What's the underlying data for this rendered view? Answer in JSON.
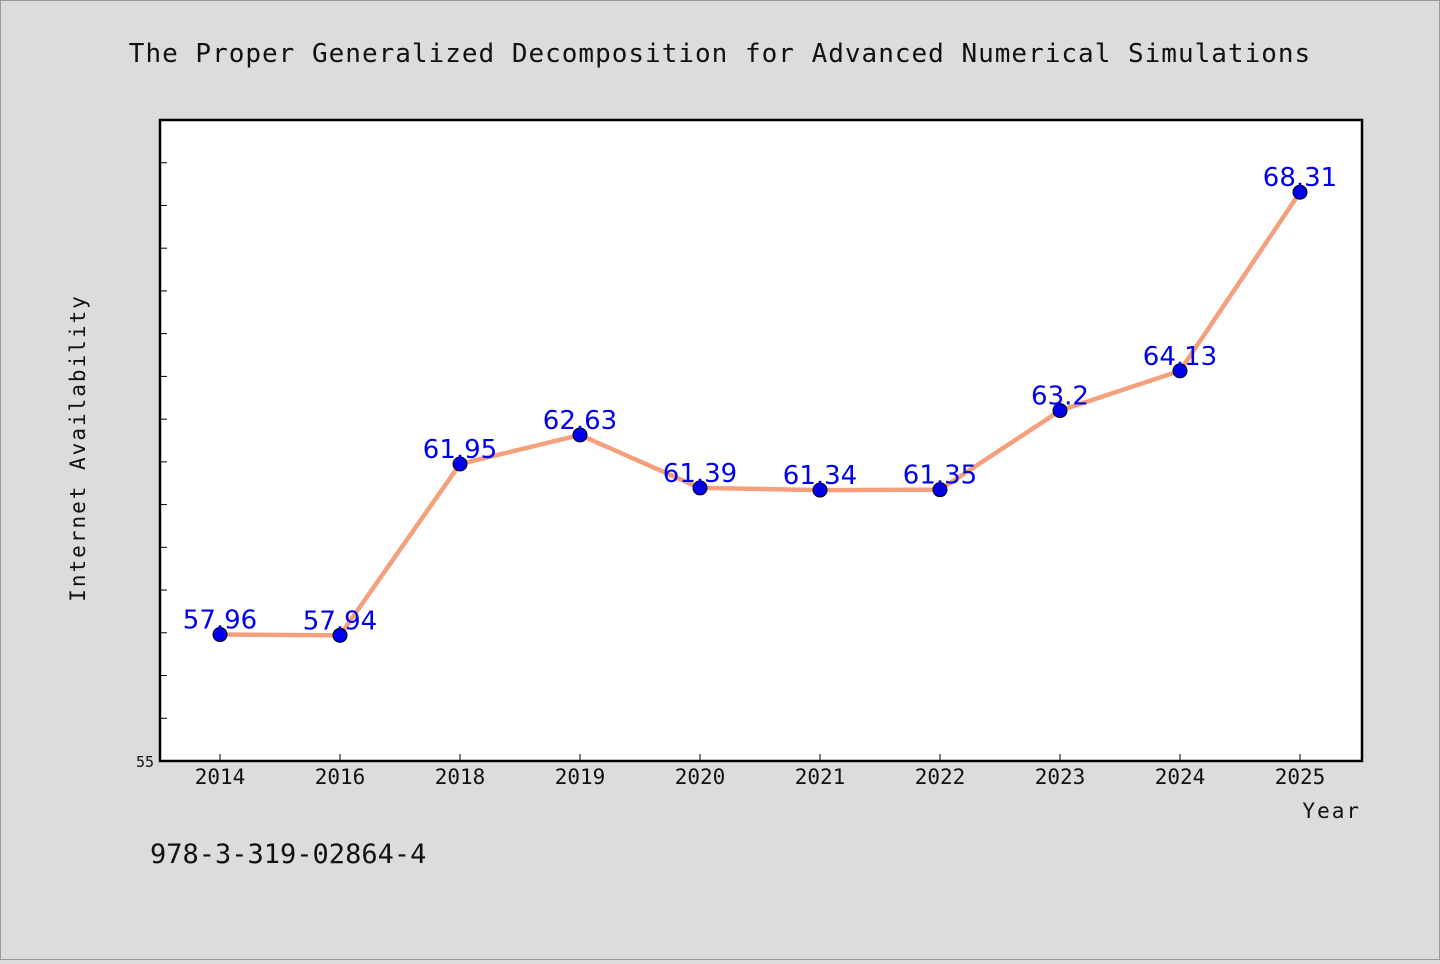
{
  "chart_data": {
    "type": "line",
    "title": "The Proper Generalized Decomposition for Advanced Numerical Simulations",
    "xlabel": "Year",
    "ylabel": "Internet Availability",
    "categories": [
      "2014",
      "2016",
      "2018",
      "2019",
      "2020",
      "2021",
      "2022",
      "2023",
      "2024",
      "2025"
    ],
    "series": [
      {
        "values": [
          57.96,
          57.94,
          61.95,
          62.63,
          61.39,
          61.34,
          61.35,
          63.2,
          64.13,
          68.31
        ],
        "labels": [
          "57.96",
          "57.94",
          "61.95",
          "62.63",
          "61.39",
          "61.34",
          "61.35",
          "63.2",
          "64.13",
          "68.31"
        ]
      }
    ],
    "ylim": [
      55,
      70
    ],
    "ytick_labels": [
      "55"
    ],
    "line_color": "#f4a07c",
    "marker_color": "#0000ee",
    "label_color": "#0000ee",
    "grid": false,
    "legend": "none"
  },
  "footnote": "978-3-319-02864-4"
}
